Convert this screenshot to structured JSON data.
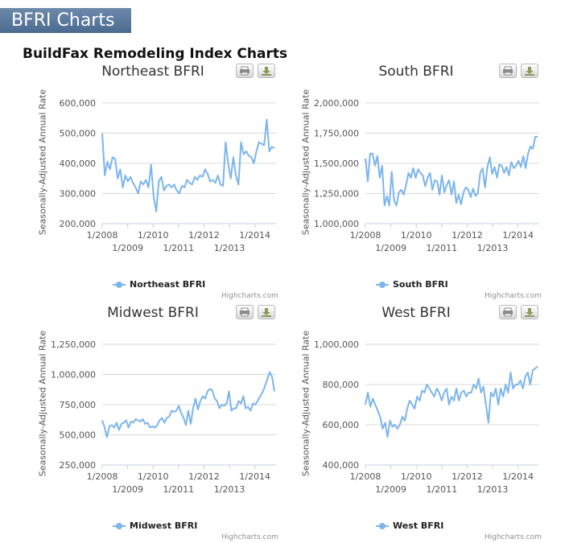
{
  "header": {
    "banner": "BFRI Charts",
    "subtitle": "BuildFax Remodeling Index Charts"
  },
  "credits": "Highcharts.com",
  "icons": {
    "print": "print-icon",
    "export": "download-icon"
  },
  "chart_data": [
    {
      "type": "line",
      "title": "Northeast BFRI",
      "ylabel": "Seasonally-Adjusted Annual Rate",
      "legend": "Northeast BFRI",
      "ylim": [
        200000,
        600000
      ],
      "yticks": [
        "200,000",
        "300,000",
        "400,000",
        "500,000",
        "600,000"
      ],
      "xticks_upper": [
        "1/2008",
        "1/2010",
        "1/2012",
        "1/2014"
      ],
      "xticks_lower": [
        "1/2009",
        "1/2011",
        "1/2013"
      ],
      "x_start": "1/2008",
      "series": [
        {
          "name": "Northeast BFRI",
          "color": "#7cb5ec",
          "values": [
            500000,
            360000,
            405000,
            380000,
            420000,
            415000,
            350000,
            380000,
            320000,
            360000,
            340000,
            355000,
            335000,
            320000,
            300000,
            340000,
            330000,
            345000,
            320000,
            395000,
            290000,
            240000,
            340000,
            355000,
            310000,
            325000,
            330000,
            320000,
            330000,
            310000,
            300000,
            325000,
            320000,
            345000,
            335000,
            330000,
            355000,
            345000,
            360000,
            355000,
            380000,
            365000,
            340000,
            345000,
            335000,
            360000,
            330000,
            325000,
            470000,
            400000,
            350000,
            420000,
            360000,
            330000,
            470000,
            430000,
            440000,
            425000,
            420000,
            400000,
            440000,
            470000,
            465000,
            460000,
            545000,
            440000,
            455000,
            450000
          ]
        }
      ]
    },
    {
      "type": "line",
      "title": "South BFRI",
      "ylabel": "Seasonally-Adjusted Annual Rate",
      "legend": "South BFRI",
      "ylim": [
        1000000,
        2000000
      ],
      "yticks": [
        "1,000,000",
        "1,250,000",
        "1,500,000",
        "1,750,000",
        "2,000,000"
      ],
      "xticks_upper": [
        "1/2008",
        "1/2010",
        "1/2012",
        "1/2014"
      ],
      "xticks_lower": [
        "1/2009",
        "1/2011",
        "1/2013"
      ],
      "x_start": "1/2008",
      "series": [
        {
          "name": "South BFRI",
          "color": "#7cb5ec",
          "values": [
            1540000,
            1350000,
            1580000,
            1580000,
            1480000,
            1560000,
            1380000,
            1480000,
            1150000,
            1230000,
            1150000,
            1430000,
            1190000,
            1150000,
            1260000,
            1280000,
            1240000,
            1320000,
            1420000,
            1380000,
            1460000,
            1380000,
            1450000,
            1420000,
            1400000,
            1310000,
            1380000,
            1420000,
            1280000,
            1360000,
            1350000,
            1240000,
            1400000,
            1260000,
            1320000,
            1360000,
            1240000,
            1350000,
            1170000,
            1240000,
            1160000,
            1260000,
            1300000,
            1280000,
            1220000,
            1290000,
            1230000,
            1250000,
            1420000,
            1460000,
            1300000,
            1470000,
            1550000,
            1410000,
            1470000,
            1380000,
            1490000,
            1480000,
            1420000,
            1470000,
            1400000,
            1510000,
            1460000,
            1480000,
            1520000,
            1470000,
            1560000,
            1460000,
            1580000,
            1640000,
            1620000,
            1720000,
            1720000
          ]
        }
      ]
    },
    {
      "type": "line",
      "title": "Midwest BFRI",
      "ylabel": "Seasonally-Adjusted Annual Rate",
      "legend": "Midwest BFRI",
      "ylim": [
        250000,
        1250000
      ],
      "yticks": [
        "250,000",
        "500,000",
        "750,000",
        "1,000,000",
        "1,250,000"
      ],
      "xticks_upper": [
        "1/2008",
        "1/2010",
        "1/2012",
        "1/2014"
      ],
      "xticks_lower": [
        "1/2009",
        "1/2011",
        "1/2013"
      ],
      "x_start": "1/2008",
      "series": [
        {
          "name": "Midwest BFRI",
          "color": "#7cb5ec",
          "values": [
            620000,
            560000,
            480000,
            570000,
            580000,
            560000,
            600000,
            540000,
            590000,
            600000,
            620000,
            560000,
            610000,
            600000,
            630000,
            620000,
            610000,
            630000,
            590000,
            600000,
            560000,
            570000,
            560000,
            580000,
            620000,
            640000,
            600000,
            640000,
            650000,
            700000,
            690000,
            700000,
            740000,
            680000,
            640000,
            580000,
            700000,
            590000,
            720000,
            800000,
            710000,
            780000,
            820000,
            800000,
            860000,
            880000,
            870000,
            800000,
            780000,
            720000,
            750000,
            740000,
            760000,
            860000,
            700000,
            720000,
            720000,
            780000,
            760000,
            820000,
            720000,
            730000,
            700000,
            760000,
            750000,
            780000,
            820000,
            850000,
            900000,
            960000,
            1020000,
            980000,
            860000
          ]
        }
      ]
    },
    {
      "type": "line",
      "title": "West BFRI",
      "ylabel": "Seasonally-Adjusted Annual Rate",
      "legend": "West BFRI",
      "ylim": [
        400000,
        1000000
      ],
      "yticks": [
        "400,000",
        "600,000",
        "800,000",
        "1,000,000"
      ],
      "xticks_upper": [
        "1/2008",
        "1/2010",
        "1/2012",
        "1/2014"
      ],
      "xticks_lower": [
        "1/2009",
        "1/2011",
        "1/2013"
      ],
      "x_start": "1/2008",
      "series": [
        {
          "name": "West BFRI",
          "color": "#7cb5ec",
          "values": [
            700000,
            760000,
            690000,
            730000,
            700000,
            670000,
            640000,
            580000,
            610000,
            540000,
            620000,
            590000,
            600000,
            580000,
            600000,
            640000,
            620000,
            680000,
            720000,
            700000,
            680000,
            740000,
            720000,
            770000,
            760000,
            800000,
            780000,
            760000,
            740000,
            780000,
            760000,
            720000,
            760000,
            780000,
            700000,
            740000,
            720000,
            780000,
            720000,
            760000,
            770000,
            740000,
            760000,
            760000,
            800000,
            780000,
            830000,
            760000,
            790000,
            700000,
            610000,
            760000,
            740000,
            780000,
            700000,
            780000,
            740000,
            800000,
            760000,
            860000,
            780000,
            800000,
            800000,
            820000,
            780000,
            840000,
            860000,
            800000,
            870000,
            880000,
            890000
          ]
        }
      ]
    }
  ]
}
